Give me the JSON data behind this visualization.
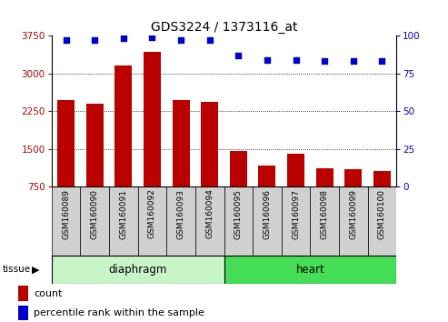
{
  "title": "GDS3224 / 1373116_at",
  "samples": [
    "GSM160089",
    "GSM160090",
    "GSM160091",
    "GSM160092",
    "GSM160093",
    "GSM160094",
    "GSM160095",
    "GSM160096",
    "GSM160097",
    "GSM160098",
    "GSM160099",
    "GSM160100"
  ],
  "counts": [
    2470,
    2390,
    3150,
    3430,
    2460,
    2430,
    1460,
    1170,
    1400,
    1120,
    1090,
    1060
  ],
  "percentiles": [
    97,
    97,
    98,
    99,
    97,
    97,
    87,
    84,
    84,
    83,
    83,
    83
  ],
  "groups": [
    {
      "label": "diaphragm",
      "start": 0,
      "end": 6
    },
    {
      "label": "heart",
      "start": 6,
      "end": 12
    }
  ],
  "group_colors": [
    "#c8f5c8",
    "#44dd55"
  ],
  "bar_color": "#bb0000",
  "dot_color": "#0000cc",
  "ylim_left": [
    750,
    3750
  ],
  "yticks_left": [
    750,
    1500,
    2250,
    3000,
    3750
  ],
  "ylim_right": [
    0,
    100
  ],
  "yticks_right": [
    0,
    25,
    50,
    75,
    100
  ],
  "legend_count_label": "count",
  "legend_pct_label": "percentile rank within the sample",
  "tissue_label": "tissue"
}
